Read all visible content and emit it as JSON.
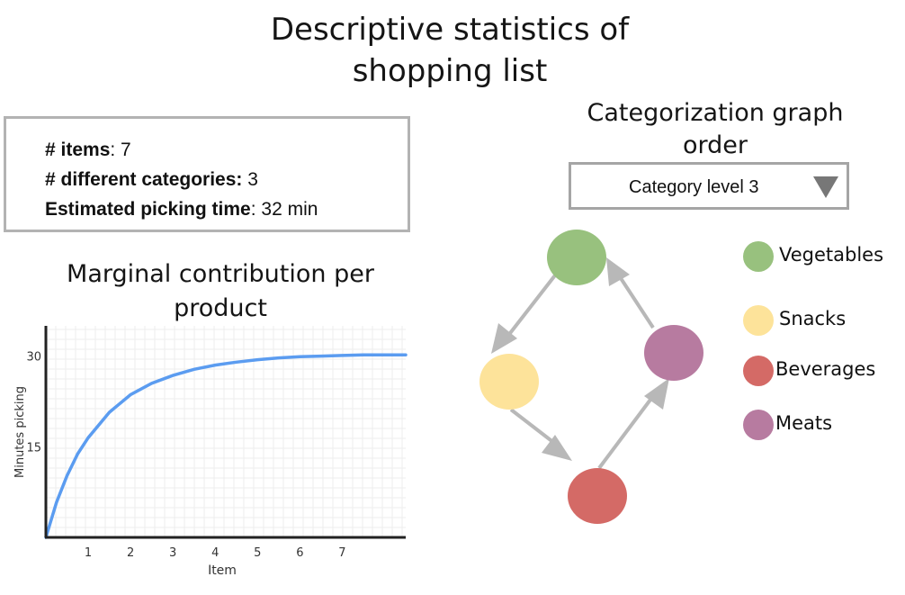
{
  "title": "Descriptive statistics of shopping list",
  "stats": {
    "items_label": "# items",
    "items_value": ": 7",
    "categories_label": "# different categories:",
    "categories_value": " 3",
    "time_label": "Estimated picking time",
    "time_value": ": 32 min"
  },
  "chart_title": "Marginal contribution per product",
  "chart_data": {
    "type": "line",
    "xlabel": "Item",
    "ylabel": "Minutes picking",
    "x_ticks": [
      "1",
      "2",
      "3",
      "4",
      "5",
      "6",
      "7"
    ],
    "y_ticks": [
      "15",
      "30"
    ],
    "xlim": [
      0,
      8.5
    ],
    "ylim": [
      0,
      35
    ],
    "grid": true,
    "series": [
      {
        "color": "#5b9cf0",
        "x": [
          0,
          0.25,
          0.5,
          0.75,
          1,
          1.5,
          2,
          2.5,
          3,
          3.5,
          4,
          4.5,
          5,
          5.5,
          6,
          6.5,
          7,
          7.5,
          8,
          8.5
        ],
        "y": [
          0,
          5.8,
          10.2,
          13.8,
          16.5,
          20.7,
          23.6,
          25.5,
          26.8,
          27.8,
          28.5,
          29.0,
          29.4,
          29.7,
          29.9,
          30.0,
          30.1,
          30.2,
          30.2,
          30.2
        ]
      }
    ]
  },
  "category_graph": {
    "title": "Categorization graph order",
    "dropdown_value": "Category level 3"
  },
  "legend": [
    {
      "label": "Vegetables",
      "color": "#98c17e"
    },
    {
      "label": "Snacks",
      "color": "#fde39a"
    },
    {
      "label": "Beverages",
      "color": "#d46a66"
    },
    {
      "label": "Meats",
      "color": "#b77ba0"
    }
  ]
}
